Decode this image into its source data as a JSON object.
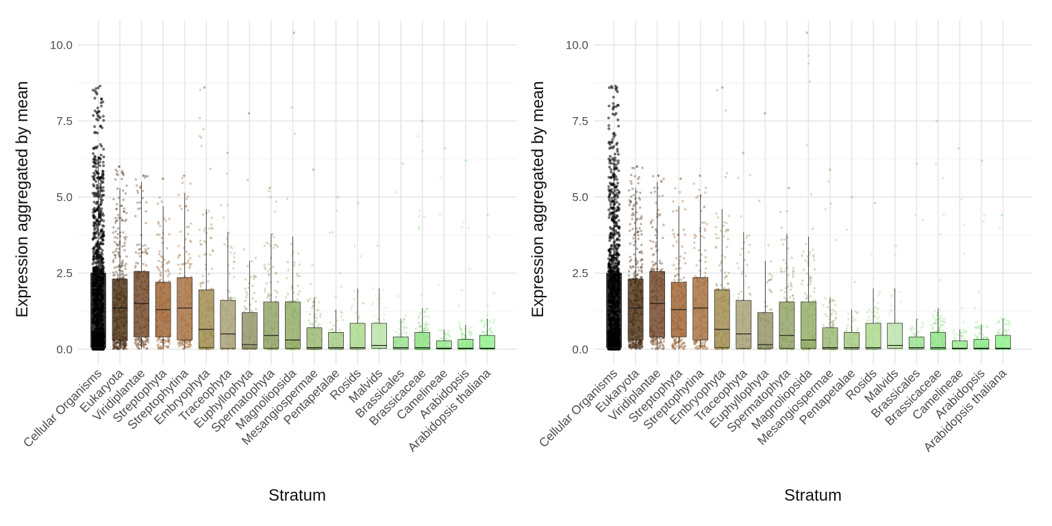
{
  "chart_data": [
    {
      "type": "box",
      "overlay": "jittered points",
      "xlabel": "Stratum",
      "ylabel": "Expression aggregated by mean",
      "ylim": [
        -0.5,
        10.8
      ],
      "yticks": [
        0.0,
        2.5,
        5.0,
        7.5,
        10.0
      ],
      "ytick_labels": [
        "0.0",
        "2.5",
        "5.0",
        "7.5",
        "10.0"
      ],
      "grid": true,
      "categories": [
        "Cellular Organisms",
        "Eukaryota",
        "Viridiplantae",
        "Streptophyta",
        "Streptophytina",
        "Embryophyta",
        "Traceophyta",
        "Euphyllophyta",
        "Spermatophyta",
        "Magnoliopsida",
        "Mesangiospermae",
        "Pentapetalae",
        "Rosids",
        "Malvids",
        "Brassicales",
        "Brassicaceae",
        "Camelineae",
        "Arabidopsis",
        "Arabidopsis thaliana"
      ],
      "colors": [
        "#000000",
        "#4a2e12",
        "#6b4020",
        "#9b5e2c",
        "#a26c3a",
        "#9c8848",
        "#a69c70",
        "#8f9060",
        "#8fa062",
        "#8faa60",
        "#98b870",
        "#a4c880",
        "#a8d888",
        "#b8e2a6",
        "#98e08e",
        "#8ee084",
        "#98e890",
        "#8ee88a",
        "#8ef08a"
      ],
      "boxes": [
        {
          "q1": 0.05,
          "median": 0.6,
          "q3": 2.5,
          "whisker_low": 0.0,
          "whisker_high": 6.3,
          "max": 8.65,
          "n_points": 1400
        },
        {
          "q1": 0.3,
          "median": 1.35,
          "q3": 2.3,
          "whisker_low": 0.0,
          "whisker_high": 5.3,
          "max": 6.0,
          "n_points": 420
        },
        {
          "q1": 0.4,
          "median": 1.5,
          "q3": 2.55,
          "whisker_low": 0.0,
          "whisker_high": 5.5,
          "max": 5.7,
          "n_points": 200
        },
        {
          "q1": 0.4,
          "median": 1.3,
          "q3": 2.2,
          "whisker_low": 0.0,
          "whisker_high": 4.7,
          "max": 5.6,
          "n_points": 170
        },
        {
          "q1": 0.3,
          "median": 1.35,
          "q3": 2.35,
          "whisker_low": 0.0,
          "whisker_high": 5.1,
          "max": 5.7,
          "n_points": 170
        },
        {
          "q1": 0.05,
          "median": 0.65,
          "q3": 1.95,
          "whisker_low": 0.0,
          "whisker_high": 4.6,
          "max": 8.6,
          "n_points": 180
        },
        {
          "q1": 0.03,
          "median": 0.5,
          "q3": 1.6,
          "whisker_low": 0.0,
          "whisker_high": 3.85,
          "max": 6.45,
          "n_points": 110
        },
        {
          "q1": 0.02,
          "median": 0.15,
          "q3": 1.2,
          "whisker_low": 0.0,
          "whisker_high": 2.9,
          "max": 7.75,
          "n_points": 90
        },
        {
          "q1": 0.03,
          "median": 0.45,
          "q3": 1.55,
          "whisker_low": 0.0,
          "whisker_high": 3.8,
          "max": 5.3,
          "n_points": 170
        },
        {
          "q1": 0.03,
          "median": 0.3,
          "q3": 1.55,
          "whisker_low": 0.0,
          "whisker_high": 3.7,
          "max": 10.4,
          "n_points": 180
        },
        {
          "q1": 0.01,
          "median": 0.05,
          "q3": 0.7,
          "whisker_low": 0.0,
          "whisker_high": 1.7,
          "max": 5.9,
          "n_points": 140
        },
        {
          "q1": 0.01,
          "median": 0.05,
          "q3": 0.55,
          "whisker_low": 0.0,
          "whisker_high": 1.3,
          "max": 5.0,
          "n_points": 90
        },
        {
          "q1": 0.01,
          "median": 0.05,
          "q3": 0.85,
          "whisker_low": 0.0,
          "whisker_high": 2.0,
          "max": 4.8,
          "n_points": 80
        },
        {
          "q1": 0.03,
          "median": 0.12,
          "q3": 0.85,
          "whisker_low": 0.0,
          "whisker_high": 2.0,
          "max": 3.4,
          "n_points": 60
        },
        {
          "q1": 0.01,
          "median": 0.05,
          "q3": 0.4,
          "whisker_low": 0.0,
          "whisker_high": 1.0,
          "max": 6.1,
          "n_points": 80
        },
        {
          "q1": 0.01,
          "median": 0.05,
          "q3": 0.55,
          "whisker_low": 0.0,
          "whisker_high": 1.35,
          "max": 7.5,
          "n_points": 180
        },
        {
          "q1": 0.01,
          "median": 0.03,
          "q3": 0.27,
          "whisker_low": 0.0,
          "whisker_high": 0.65,
          "max": 6.6,
          "n_points": 90
        },
        {
          "q1": 0.01,
          "median": 0.03,
          "q3": 0.32,
          "whisker_low": 0.0,
          "whisker_high": 0.8,
          "max": 6.2,
          "n_points": 140
        },
        {
          "q1": 0.01,
          "median": 0.03,
          "q3": 0.45,
          "whisker_low": 0.0,
          "whisker_high": 1.0,
          "max": 4.4,
          "n_points": 110
        }
      ]
    },
    {
      "type": "box",
      "overlay": "jittered points",
      "xlabel": "Stratum",
      "ylabel": "Expression aggregated by mean",
      "ylim": [
        -0.5,
        10.8
      ],
      "yticks": [
        0.0,
        2.5,
        5.0,
        7.5,
        10.0
      ],
      "ytick_labels": [
        "0.0",
        "2.5",
        "5.0",
        "7.5",
        "10.0"
      ],
      "grid": true,
      "categories": [
        "Cellular Organisms",
        "Eukaryota",
        "Viridiplantae",
        "Streptophyta",
        "Streptophytina",
        "Embryophyta",
        "Traceophyta",
        "Euphyllophyta",
        "Spermatophyta",
        "Magnoliopsida",
        "Mesangiospermae",
        "Pentapetalae",
        "Rosids",
        "Malvids",
        "Brassicales",
        "Brassicaceae",
        "Camelineae",
        "Arabidopsis",
        "Arabidopsis thaliana"
      ],
      "colors": [
        "#000000",
        "#4a2e12",
        "#6b4020",
        "#9b5e2c",
        "#a26c3a",
        "#9c8848",
        "#a69c70",
        "#8f9060",
        "#8fa062",
        "#8faa60",
        "#98b870",
        "#a4c880",
        "#a8d888",
        "#b8e2a6",
        "#98e08e",
        "#8ee084",
        "#98e890",
        "#8ee88a",
        "#8ef08a"
      ],
      "boxes": [
        {
          "q1": 0.05,
          "median": 0.6,
          "q3": 2.5,
          "whisker_low": 0.0,
          "whisker_high": 6.3,
          "max": 8.65,
          "n_points": 1400
        },
        {
          "q1": 0.3,
          "median": 1.35,
          "q3": 2.3,
          "whisker_low": 0.0,
          "whisker_high": 5.3,
          "max": 6.0,
          "n_points": 420
        },
        {
          "q1": 0.4,
          "median": 1.5,
          "q3": 2.55,
          "whisker_low": 0.0,
          "whisker_high": 5.5,
          "max": 5.7,
          "n_points": 200
        },
        {
          "q1": 0.4,
          "median": 1.3,
          "q3": 2.2,
          "whisker_low": 0.0,
          "whisker_high": 4.7,
          "max": 5.6,
          "n_points": 170
        },
        {
          "q1": 0.3,
          "median": 1.35,
          "q3": 2.35,
          "whisker_low": 0.0,
          "whisker_high": 5.1,
          "max": 5.7,
          "n_points": 170
        },
        {
          "q1": 0.05,
          "median": 0.65,
          "q3": 1.95,
          "whisker_low": 0.0,
          "whisker_high": 4.6,
          "max": 8.6,
          "n_points": 180
        },
        {
          "q1": 0.03,
          "median": 0.5,
          "q3": 1.6,
          "whisker_low": 0.0,
          "whisker_high": 3.85,
          "max": 6.45,
          "n_points": 110
        },
        {
          "q1": 0.02,
          "median": 0.15,
          "q3": 1.2,
          "whisker_low": 0.0,
          "whisker_high": 2.9,
          "max": 7.75,
          "n_points": 90
        },
        {
          "q1": 0.03,
          "median": 0.45,
          "q3": 1.55,
          "whisker_low": 0.0,
          "whisker_high": 3.8,
          "max": 5.3,
          "n_points": 170
        },
        {
          "q1": 0.03,
          "median": 0.3,
          "q3": 1.55,
          "whisker_low": 0.0,
          "whisker_high": 3.7,
          "max": 10.4,
          "n_points": 180
        },
        {
          "q1": 0.01,
          "median": 0.05,
          "q3": 0.7,
          "whisker_low": 0.0,
          "whisker_high": 1.7,
          "max": 5.9,
          "n_points": 140
        },
        {
          "q1": 0.01,
          "median": 0.05,
          "q3": 0.55,
          "whisker_low": 0.0,
          "whisker_high": 1.3,
          "max": 5.0,
          "n_points": 90
        },
        {
          "q1": 0.01,
          "median": 0.05,
          "q3": 0.85,
          "whisker_low": 0.0,
          "whisker_high": 2.0,
          "max": 4.8,
          "n_points": 80
        },
        {
          "q1": 0.03,
          "median": 0.12,
          "q3": 0.85,
          "whisker_low": 0.0,
          "whisker_high": 2.0,
          "max": 3.4,
          "n_points": 60
        },
        {
          "q1": 0.01,
          "median": 0.05,
          "q3": 0.4,
          "whisker_low": 0.0,
          "whisker_high": 1.0,
          "max": 6.1,
          "n_points": 80
        },
        {
          "q1": 0.01,
          "median": 0.05,
          "q3": 0.55,
          "whisker_low": 0.0,
          "whisker_high": 1.35,
          "max": 7.5,
          "n_points": 180
        },
        {
          "q1": 0.01,
          "median": 0.03,
          "q3": 0.27,
          "whisker_low": 0.0,
          "whisker_high": 0.65,
          "max": 6.6,
          "n_points": 90
        },
        {
          "q1": 0.01,
          "median": 0.03,
          "q3": 0.32,
          "whisker_low": 0.0,
          "whisker_high": 0.8,
          "max": 6.2,
          "n_points": 140
        },
        {
          "q1": 0.01,
          "median": 0.03,
          "q3": 0.45,
          "whisker_low": 0.0,
          "whisker_high": 1.0,
          "max": 4.4,
          "n_points": 110
        }
      ]
    }
  ]
}
